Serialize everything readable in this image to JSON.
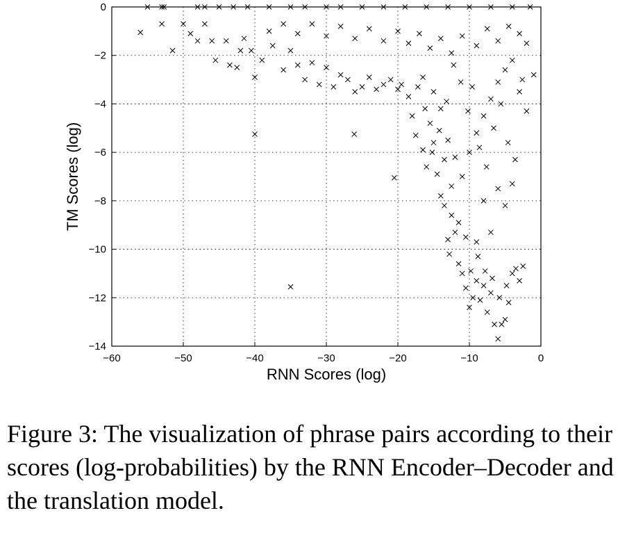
{
  "chart_data": {
    "type": "scatter",
    "marker": "x",
    "xlabel": "RNN Scores (log)",
    "ylabel": "TM Scores (log)",
    "xlim": [
      -60,
      0
    ],
    "ylim": [
      -14,
      0
    ],
    "grid": true,
    "x_ticks": [
      -60,
      -50,
      -40,
      -30,
      -20,
      -10,
      0
    ],
    "y_ticks": [
      0,
      -2,
      -4,
      -6,
      -8,
      -10,
      -12,
      -14
    ],
    "x_tick_labels": [
      "−60",
      "−50",
      "−40",
      "−30",
      "−20",
      "−10",
      "0"
    ],
    "y_tick_labels": [
      "0",
      "−2",
      "−4",
      "−6",
      "−8",
      "−10",
      "−12",
      "−14"
    ],
    "points": [
      [
        -55,
        0
      ],
      [
        -53,
        0
      ],
      [
        -52.7,
        0
      ],
      [
        -48,
        0
      ],
      [
        -47,
        0
      ],
      [
        -45,
        0
      ],
      [
        -43,
        0
      ],
      [
        -41,
        0
      ],
      [
        -38,
        0
      ],
      [
        -35,
        0
      ],
      [
        -33,
        0
      ],
      [
        -30,
        0
      ],
      [
        -28,
        0
      ],
      [
        -25,
        0
      ],
      [
        -22,
        0
      ],
      [
        -19,
        0
      ],
      [
        -16,
        0
      ],
      [
        -13,
        0
      ],
      [
        -10,
        0
      ],
      [
        -7,
        0
      ],
      [
        -4,
        0
      ],
      [
        -1.5,
        0
      ],
      [
        -56,
        -1.05
      ],
      [
        -53,
        -0.7
      ],
      [
        -51.5,
        -1.8
      ],
      [
        -50,
        -0.7
      ],
      [
        -49,
        -1.1
      ],
      [
        -48,
        -1.4
      ],
      [
        -47,
        -0.7
      ],
      [
        -46,
        -1.4
      ],
      [
        -45.5,
        -2.2
      ],
      [
        -44,
        -1.4
      ],
      [
        -43.5,
        -2.4
      ],
      [
        -42.5,
        -2.5
      ],
      [
        -42,
        -1.8
      ],
      [
        -41.5,
        -1.3
      ],
      [
        -40.5,
        -1.8
      ],
      [
        -40,
        -2.9
      ],
      [
        -39,
        -2.2
      ],
      [
        -37.5,
        -1.6
      ],
      [
        -36,
        -2.6
      ],
      [
        -35,
        -1.8
      ],
      [
        -34,
        -2.4
      ],
      [
        -33,
        -3.0
      ],
      [
        -32,
        -2.3
      ],
      [
        -31,
        -3.2
      ],
      [
        -30,
        -2.5
      ],
      [
        -29,
        -3.3
      ],
      [
        -28,
        -2.8
      ],
      [
        -27,
        -3.0
      ],
      [
        -26,
        -3.5
      ],
      [
        -25,
        -3.3
      ],
      [
        -24,
        -2.9
      ],
      [
        -23,
        -3.4
      ],
      [
        -22,
        -3.2
      ],
      [
        -21,
        -3.0
      ],
      [
        -20,
        -3.4
      ],
      [
        -19.5,
        -3.2
      ],
      [
        -18.5,
        -3.7
      ],
      [
        -18,
        -4.5
      ],
      [
        -17.5,
        -5.3
      ],
      [
        -16.5,
        -5.9
      ],
      [
        -16,
        -6.6
      ],
      [
        -15.5,
        -4.8
      ],
      [
        -15,
        -5.6
      ],
      [
        -14.5,
        -6.9
      ],
      [
        -14,
        -7.8
      ],
      [
        -13.5,
        -8.2
      ],
      [
        -13,
        -9.6
      ],
      [
        -12.5,
        -8.6
      ],
      [
        -12,
        -9.3
      ],
      [
        -11.5,
        -10.6
      ],
      [
        -11,
        -11.0
      ],
      [
        -10.5,
        -11.6
      ],
      [
        -10,
        -12.4
      ],
      [
        -9.5,
        -12.0
      ],
      [
        -9,
        -11.3
      ],
      [
        -8.5,
        -12.1
      ],
      [
        -8,
        -11.5
      ],
      [
        -7.5,
        -12.6
      ],
      [
        -7,
        -11.8
      ],
      [
        -6.5,
        -13.1
      ],
      [
        -6,
        -13.7
      ],
      [
        -5.5,
        -13.1
      ],
      [
        -5,
        -12.9
      ],
      [
        -4.5,
        -12.2
      ],
      [
        -4,
        -11.0
      ],
      [
        -3.5,
        -10.8
      ],
      [
        -3,
        -11.3
      ],
      [
        -2.5,
        -10.7
      ],
      [
        -4,
        -7.3
      ],
      [
        -6,
        -7.5
      ],
      [
        -5,
        -8.2
      ],
      [
        -7,
        -9.3
      ],
      [
        -8,
        -8.0
      ],
      [
        -9,
        -9.7
      ],
      [
        -10.5,
        -9.5
      ],
      [
        -11.5,
        -8.9
      ],
      [
        -12.5,
        -7.4
      ],
      [
        -13.5,
        -6.3
      ],
      [
        -15,
        -3.5
      ],
      [
        -16.5,
        -2.9
      ],
      [
        -14,
        -4.2
      ],
      [
        -13,
        -5.5
      ],
      [
        -12,
        -6.2
      ],
      [
        -11,
        -7.0
      ],
      [
        -10,
        -6.0
      ],
      [
        -9,
        -5.2
      ],
      [
        -8,
        -4.5
      ],
      [
        -7,
        -3.8
      ],
      [
        -6,
        -3.1
      ],
      [
        -5,
        -2.6
      ],
      [
        -4,
        -2.2
      ],
      [
        -3,
        -3.5
      ],
      [
        -2,
        -4.3
      ],
      [
        -1,
        -2.8
      ],
      [
        -2,
        -1.5
      ],
      [
        -3,
        -1.1
      ],
      [
        -4.5,
        -0.8
      ],
      [
        -6,
        -1.4
      ],
      [
        -7.5,
        -0.9
      ],
      [
        -9,
        -1.6
      ],
      [
        -11,
        -1.2
      ],
      [
        -12.5,
        -1.9
      ],
      [
        -14,
        -1.3
      ],
      [
        -15.5,
        -1.7
      ],
      [
        -17,
        -1.1
      ],
      [
        -18.5,
        -1.5
      ],
      [
        -20,
        -1.0
      ],
      [
        -22,
        -1.4
      ],
      [
        -24,
        -0.9
      ],
      [
        -26,
        -1.3
      ],
      [
        -28,
        -0.8
      ],
      [
        -30,
        -1.2
      ],
      [
        -32,
        -0.7
      ],
      [
        -34,
        -1.1
      ],
      [
        -36,
        -0.7
      ],
      [
        -38,
        -1.0
      ],
      [
        -40,
        -5.25
      ],
      [
        -26.1,
        -5.25
      ],
      [
        -35,
        -11.55
      ],
      [
        -20.5,
        -7.05
      ],
      [
        -12.2,
        -2.4
      ],
      [
        -11.2,
        -3.1
      ],
      [
        -10.2,
        -4.3
      ],
      [
        -9.6,
        -3.3
      ],
      [
        -8.6,
        -5.8
      ],
      [
        -7.6,
        -6.6
      ],
      [
        -6.6,
        -5.0
      ],
      [
        -5.6,
        -4.0
      ],
      [
        -4.6,
        -5.6
      ],
      [
        -3.6,
        -6.3
      ],
      [
        -2.6,
        -3.0
      ],
      [
        -13.2,
        -3.9
      ],
      [
        -14.2,
        -5.1
      ],
      [
        -15.2,
        -6.0
      ],
      [
        -16.2,
        -4.2
      ],
      [
        -17.2,
        -3.3
      ],
      [
        -12.8,
        -10.2
      ],
      [
        -9.8,
        -10.9
      ],
      [
        -8.8,
        -10.3
      ],
      [
        -7.8,
        -10.9
      ],
      [
        -6.8,
        -11.2
      ],
      [
        -5.8,
        -12.0
      ],
      [
        -4.8,
        -11.5
      ]
    ]
  },
  "caption": {
    "text": "Figure 3: The visualization of phrase pairs according to their scores (log-probabilities) by the RNN Encoder–Decoder and the translation model."
  }
}
